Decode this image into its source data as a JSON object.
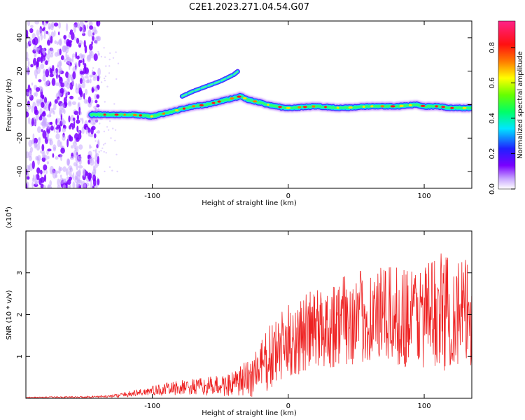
{
  "figure": {
    "title": "C2E1.2023.271.04.54.G07"
  },
  "chart_data": [
    {
      "type": "heatmap",
      "title": "C2E1.2023.271.04.54.G07",
      "xlabel": "Height of straight line (km)",
      "ylabel": "Frequency (Hz)",
      "xlim": [
        -193,
        135
      ],
      "ylim": [
        -50,
        50
      ],
      "xticks": [
        -100,
        0,
        100
      ],
      "yticks": [
        -40,
        -20,
        0,
        20,
        40
      ],
      "xtick_labels": [
        "-100",
        "0",
        "100"
      ],
      "ytick_labels": [
        "-40",
        "-20",
        "0",
        "20",
        "40"
      ],
      "colorbar": {
        "label": "Normalized spectral amplitude",
        "range": [
          0.0,
          0.95
        ],
        "ticks": [
          0.0,
          0.2,
          0.4,
          0.6,
          0.8
        ],
        "tick_labels": [
          "0.0",
          "0.2",
          "0.4",
          "0.6",
          "0.8"
        ],
        "colormap": "rainbow (purple → blue → cyan → green → yellow → red → magenta)"
      },
      "doppler_trace": {
        "x": [
          -145,
          -130,
          -115,
          -100,
          -90,
          -80,
          -70,
          -60,
          -50,
          -40,
          -35,
          -30,
          -20,
          -10,
          0,
          20,
          40,
          60,
          80,
          95,
          100,
          110,
          120,
          135
        ],
        "y": [
          -6,
          -6,
          -6,
          -7,
          -5,
          -3,
          -1,
          0,
          2,
          4,
          5,
          3,
          1,
          -1,
          -2,
          -1,
          -2,
          -1,
          -1,
          0,
          -1,
          -1,
          -2,
          -2
        ]
      },
      "branch_trace": {
        "x": [
          -78,
          -70,
          -60,
          -50,
          -45,
          -40,
          -37
        ],
        "y": [
          5,
          8,
          11,
          14,
          16,
          18,
          20
        ]
      },
      "noise_region_x": [
        -193,
        -145
      ],
      "grid": false,
      "colors": {
        "trace_core": "#ff1a1a",
        "noise": "#6a00ff",
        "background": "#ffffff"
      }
    },
    {
      "type": "line",
      "xlabel": "Height of straight line (km)",
      "ylabel": "SNR (10 * v/v)",
      "y_multiplier_label": "(x10",
      "y_multiplier_exp": "4",
      "y_multiplier_close": ")",
      "xlim": [
        -193,
        135
      ],
      "ylim": [
        0,
        4
      ],
      "xticks": [
        -100,
        0,
        100
      ],
      "yticks": [
        1,
        2,
        3
      ],
      "xtick_labels": [
        "-100",
        "0",
        "100"
      ],
      "ytick_labels": [
        "1",
        "2",
        "3"
      ],
      "grid": false,
      "series": [
        {
          "color": "#ee2222",
          "envelope": {
            "x": [
              -193,
              -150,
              -130,
              -120,
              -100,
              -80,
              -60,
              -40,
              -30,
              -20,
              -10,
              0,
              20,
              40,
              60,
              80,
              100,
              115,
              135
            ],
            "mean": [
              0.02,
              0.03,
              0.05,
              0.09,
              0.18,
              0.25,
              0.28,
              0.33,
              0.45,
              0.75,
              1.05,
              1.35,
              1.65,
              1.85,
              1.95,
              1.95,
              2.0,
              2.1,
              2.0
            ],
            "amp": [
              0.01,
              0.02,
              0.03,
              0.06,
              0.12,
              0.18,
              0.22,
              0.3,
              0.5,
              0.7,
              0.85,
              0.9,
              1.0,
              1.1,
              1.15,
              1.2,
              1.3,
              1.45,
              1.3
            ]
          }
        }
      ]
    }
  ]
}
